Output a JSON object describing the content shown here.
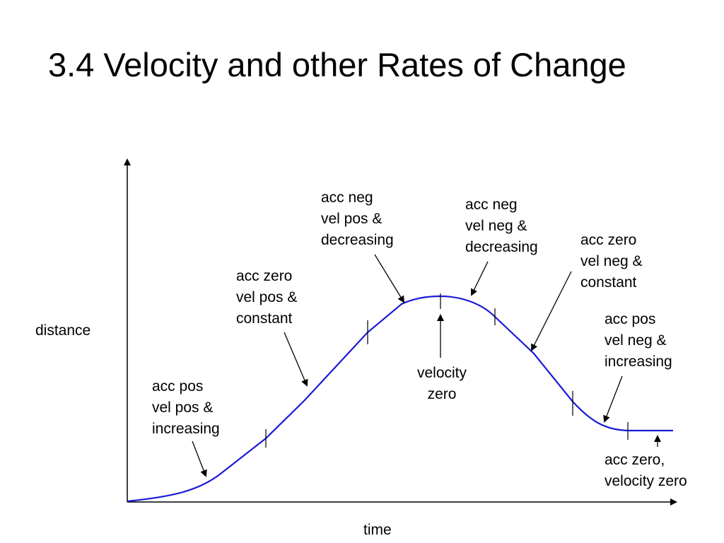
{
  "slide": {
    "title": "3.4 Velocity and other Rates of Change"
  },
  "axes": {
    "ylabel": "distance",
    "xlabel": "time"
  },
  "colors": {
    "curve": "#1a1ad6",
    "ink": "#000000"
  },
  "annotations": [
    {
      "id": "a1",
      "lines": [
        "acc pos",
        "vel pos &",
        "increasing"
      ]
    },
    {
      "id": "a2",
      "lines": [
        "acc zero",
        "vel pos &",
        "constant"
      ]
    },
    {
      "id": "a3",
      "lines": [
        "acc neg",
        "vel pos &",
        "decreasing"
      ]
    },
    {
      "id": "a4",
      "lines": [
        "velocity",
        "zero"
      ]
    },
    {
      "id": "a5",
      "lines": [
        "acc neg",
        "vel neg &",
        "decreasing"
      ]
    },
    {
      "id": "a6",
      "lines": [
        "acc zero",
        "vel neg &",
        "constant"
      ]
    },
    {
      "id": "a7",
      "lines": [
        "acc pos",
        "vel neg &",
        "increasing"
      ]
    },
    {
      "id": "a8",
      "lines": [
        "acc zero,",
        "velocity zero"
      ]
    }
  ]
}
